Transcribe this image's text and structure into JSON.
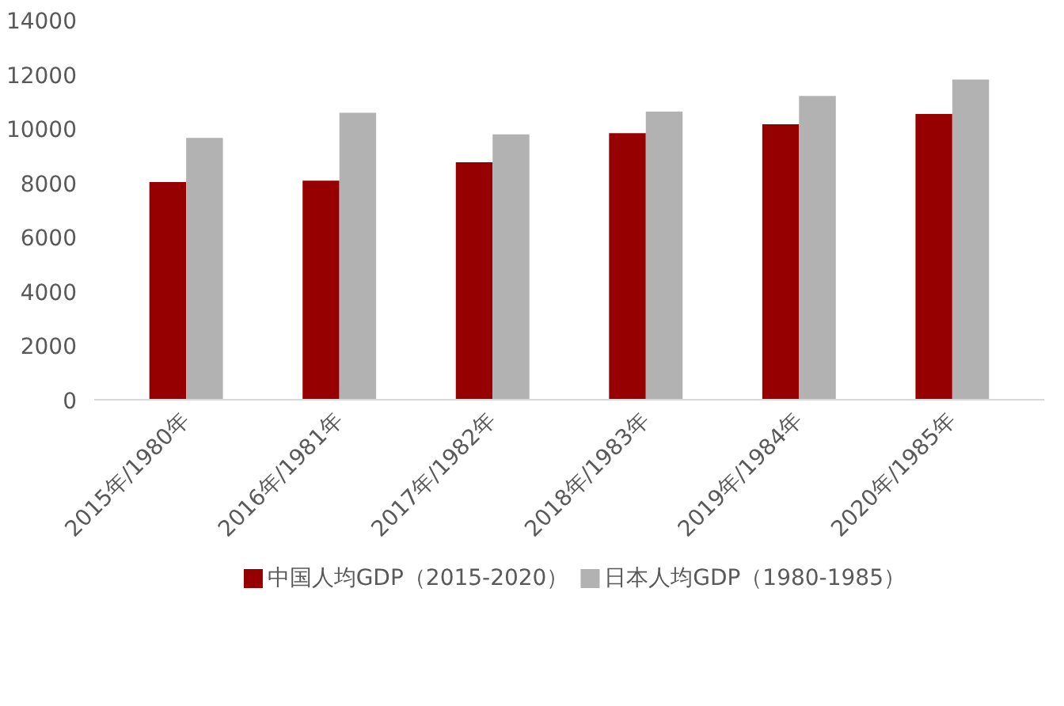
{
  "chart_data": {
    "type": "bar",
    "categories": [
      "2015年/1980年",
      "2016年/1981年",
      "2017年/1982年",
      "2018年/1983年",
      "2019年/1984年",
      "2020年/1985年"
    ],
    "series": [
      {
        "name": "中国人均GDP（2015-2020）",
        "color": "#960000",
        "values": [
          8020,
          8070,
          8750,
          9820,
          10150,
          10530
        ]
      },
      {
        "name": "日本人均GDP（1980-1985）",
        "color": "#b2b2b2",
        "values": [
          9650,
          10570,
          9780,
          10620,
          11190,
          11800
        ]
      }
    ],
    "ylim": [
      0,
      14000
    ],
    "yticks": [
      0,
      2000,
      4000,
      6000,
      8000,
      10000,
      12000,
      14000
    ],
    "grid": false,
    "legend": "bottom"
  }
}
